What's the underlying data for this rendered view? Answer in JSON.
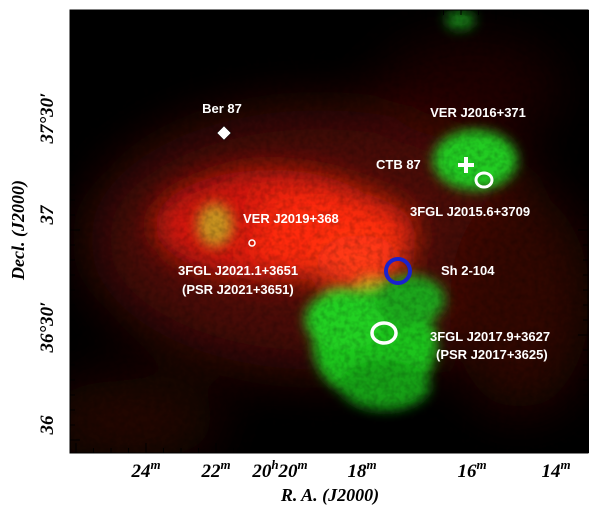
{
  "axes": {
    "xlabel": "R. A. (J2000)",
    "ylabel": "Decl. (J2000)",
    "x_ticks": [
      {
        "h": "",
        "m": "24",
        "u": "m"
      },
      {
        "h": "",
        "m": "22",
        "u": "m"
      },
      {
        "h": "20",
        "m": "20",
        "u": "m"
      },
      {
        "h": "",
        "m": "18",
        "u": "m"
      },
      {
        "h": "",
        "m": "16",
        "u": "m"
      },
      {
        "h": "",
        "m": "14",
        "u": "m"
      }
    ],
    "y_ticks": [
      "37°30′",
      "37",
      "36°30′",
      "36"
    ]
  },
  "labels": {
    "ber87": "Ber 87",
    "ver_j2016": "VER J2016+371",
    "ctb87": "CTB 87",
    "fgl_j2015": "3FGL J2015.6+3709",
    "ver_j2019": "VER J2019+368",
    "fgl_j2021": "3FGL J2021.1+3651",
    "psr_j2021": "(PSR J2021+3651)",
    "sh2_104": "Sh 2-104",
    "fgl_j2017": "3FGL J2017.9+3627",
    "psr_j2017": "(PSR J2017+3625)"
  },
  "colors": {
    "background": "#000000",
    "red_emission": "#ff2a10",
    "green_emission": "#22dd22",
    "marker_white": "#ffffff",
    "marker_blue": "#1a22cc"
  },
  "markers": [
    {
      "name": "ber87-diamond-marker",
      "shape": "diamond",
      "color": "white"
    },
    {
      "name": "ctb87-cross-marker",
      "shape": "cross",
      "color": "white"
    },
    {
      "name": "fgl-j2015-ellipse-marker",
      "shape": "ellipse",
      "color": "white"
    },
    {
      "name": "ver-j2019-marker",
      "shape": "small-circle",
      "color": "white"
    },
    {
      "name": "sh2-104-circle-marker",
      "shape": "circle",
      "color": "blue"
    },
    {
      "name": "fgl-j2017-ellipse-marker",
      "shape": "ellipse",
      "color": "white"
    }
  ]
}
